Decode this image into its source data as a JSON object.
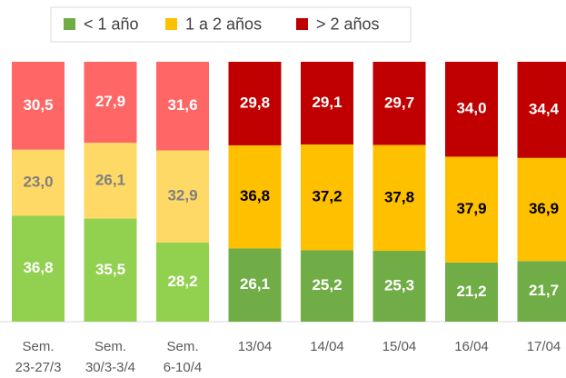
{
  "chart_data": {
    "type": "bar",
    "stacking": "percent",
    "categories": [
      "Sem.\n23-27/3",
      "Sem.\n30/3-3/4",
      "Sem.\n6-10/4",
      "13/04",
      "14/04",
      "15/04",
      "16/04",
      "17/04"
    ],
    "ylim": [
      0,
      100
    ],
    "legend": "top",
    "series": [
      {
        "name": "< 1 año",
        "color": "#70ad47",
        "colors": [
          "#92d050",
          "#92d050",
          "#92d050",
          "#70ad47",
          "#70ad47",
          "#70ad47",
          "#70ad47",
          "#70ad47"
        ],
        "label_colors": [
          "#ffffff",
          "#ffffff",
          "#ffffff",
          "#ffffff",
          "#ffffff",
          "#ffffff",
          "#ffffff",
          "#ffffff"
        ],
        "values": [
          36.8,
          35.5,
          28.2,
          26.1,
          25.2,
          25.3,
          21.2,
          21.7
        ],
        "value_labels": [
          "36,8",
          "35,5",
          "28,2",
          "26,1",
          "25,2",
          "25,3",
          "21,2",
          "21,7"
        ]
      },
      {
        "name": "1 a 2 años",
        "color": "#ffc000",
        "colors": [
          "#ffd966",
          "#ffd966",
          "#ffd966",
          "#ffc000",
          "#ffc000",
          "#ffc000",
          "#ffc000",
          "#ffc000"
        ],
        "label_colors": [
          "#7f7f7f",
          "#7f7f7f",
          "#7f7f7f",
          "#000000",
          "#000000",
          "#000000",
          "#000000",
          "#000000"
        ],
        "values": [
          23.0,
          26.1,
          32.9,
          36.8,
          37.2,
          37.8,
          37.9,
          36.9
        ],
        "value_labels": [
          "23,0",
          "26,1",
          "32,9",
          "36,8",
          "37,2",
          "37,8",
          "37,9",
          "36,9"
        ]
      },
      {
        "name": "> 2 años",
        "color": "#c00000",
        "colors": [
          "#ff6666",
          "#ff6666",
          "#ff6666",
          "#c00000",
          "#c00000",
          "#c00000",
          "#c00000",
          "#c00000"
        ],
        "label_colors": [
          "#ffffff",
          "#ffffff",
          "#ffffff",
          "#ffffff",
          "#ffffff",
          "#ffffff",
          "#ffffff",
          "#ffffff"
        ],
        "values": [
          30.5,
          27.9,
          31.6,
          29.8,
          29.1,
          29.7,
          34.0,
          34.4
        ],
        "value_labels": [
          "30,5",
          "27,9",
          "31,6",
          "29,8",
          "29,1",
          "29,7",
          "34,0",
          "34,4"
        ]
      }
    ]
  }
}
